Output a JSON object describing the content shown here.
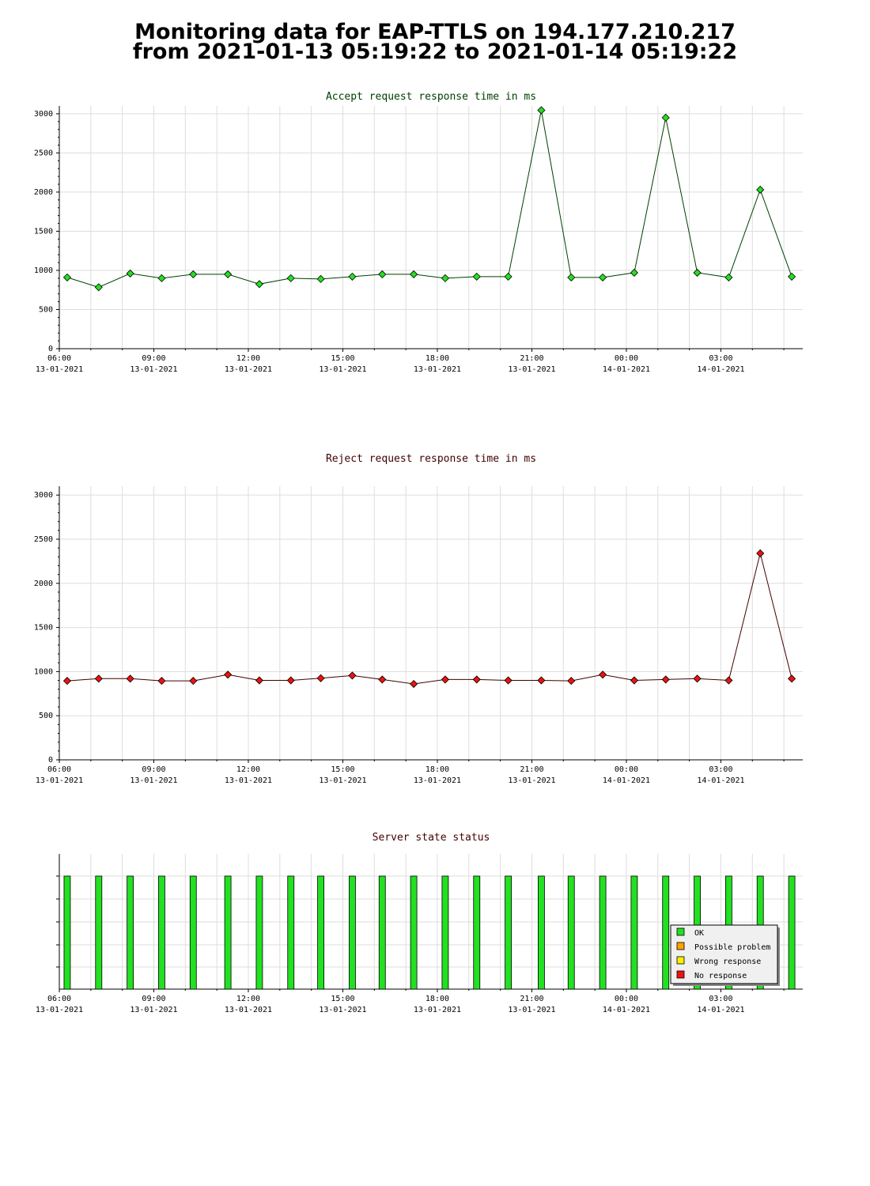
{
  "page": {
    "title_line1": "Monitoring data for EAP-TTLS on 194.177.210.217",
    "title_line2": "from 2021-01-13 05:19:22 to 2021-01-14 05:19:22"
  },
  "colors": {
    "accept_line": "#004000",
    "accept_marker": "#22e022",
    "reject_line": "#400000",
    "reject_marker": "#ee1111",
    "accept_title": "#004000",
    "reject_title": "#400000",
    "status_title": "#400000",
    "grid": "#dddddd",
    "ok": "#22e022",
    "possible_problem": "#ffa000",
    "wrong_response": "#ffee00",
    "no_response": "#ee1111"
  },
  "x_ticks": [
    {
      "time": "06:00",
      "date": "13-01-2021"
    },
    {
      "time": "09:00",
      "date": "13-01-2021"
    },
    {
      "time": "12:00",
      "date": "13-01-2021"
    },
    {
      "time": "15:00",
      "date": "13-01-2021"
    },
    {
      "time": "18:00",
      "date": "13-01-2021"
    },
    {
      "time": "21:00",
      "date": "13-01-2021"
    },
    {
      "time": "00:00",
      "date": "14-01-2021"
    },
    {
      "time": "03:00",
      "date": "14-01-2021"
    }
  ],
  "chart_data": [
    {
      "type": "line",
      "title": "Accept request response time in ms",
      "x_unit": "hours after 06:00 13-01-2021",
      "x": [
        0.25,
        1.25,
        2.25,
        3.25,
        4.25,
        5.35,
        6.35,
        7.35,
        8.3,
        9.3,
        10.25,
        11.25,
        12.25,
        13.25,
        14.25,
        15.3,
        16.25,
        17.25,
        18.25,
        19.25,
        20.25,
        21.25,
        22.25,
        23.25
      ],
      "values": [
        910,
        785,
        960,
        900,
        950,
        950,
        825,
        900,
        890,
        920,
        950,
        950,
        900,
        920,
        920,
        3045,
        910,
        910,
        970,
        2950,
        970,
        910,
        2030,
        920
      ],
      "ylim": [
        0,
        3100
      ],
      "yticks": [
        0,
        500,
        1000,
        1500,
        2000,
        2500,
        3000
      ],
      "grid": true
    },
    {
      "type": "line",
      "title": "Reject request response time in ms",
      "x_unit": "hours after 06:00 13-01-2021",
      "x": [
        0.25,
        1.25,
        2.25,
        3.25,
        4.25,
        5.35,
        6.35,
        7.35,
        8.3,
        9.3,
        10.25,
        11.25,
        12.25,
        13.25,
        14.25,
        15.3,
        16.25,
        17.25,
        18.25,
        19.25,
        20.25,
        21.25,
        22.25,
        23.25
      ],
      "values": [
        895,
        920,
        920,
        895,
        895,
        965,
        900,
        900,
        925,
        955,
        910,
        860,
        910,
        910,
        900,
        900,
        895,
        965,
        900,
        910,
        920,
        900,
        2340,
        920
      ],
      "ylim": [
        0,
        3100
      ],
      "yticks": [
        0,
        500,
        1000,
        1500,
        2000,
        2500,
        3000
      ],
      "grid": true
    },
    {
      "type": "bar",
      "title": "Server state status",
      "x_unit": "hours after 06:00 13-01-2021",
      "x": [
        0.25,
        1.25,
        2.25,
        3.25,
        4.25,
        5.35,
        6.35,
        7.35,
        8.3,
        9.3,
        10.25,
        11.25,
        12.25,
        13.25,
        14.25,
        15.3,
        16.25,
        17.25,
        18.25,
        19.25,
        20.25,
        21.25,
        22.25,
        23.25
      ],
      "status": [
        "OK",
        "OK",
        "OK",
        "OK",
        "OK",
        "OK",
        "OK",
        "OK",
        "OK",
        "OK",
        "OK",
        "OK",
        "OK",
        "OK",
        "OK",
        "OK",
        "OK",
        "OK",
        "OK",
        "OK",
        "OK",
        "OK",
        "OK",
        "OK"
      ],
      "legend": [
        "OK",
        "Possible problem",
        "Wrong response",
        "No response"
      ],
      "legend_position": "bottom-right"
    }
  ]
}
